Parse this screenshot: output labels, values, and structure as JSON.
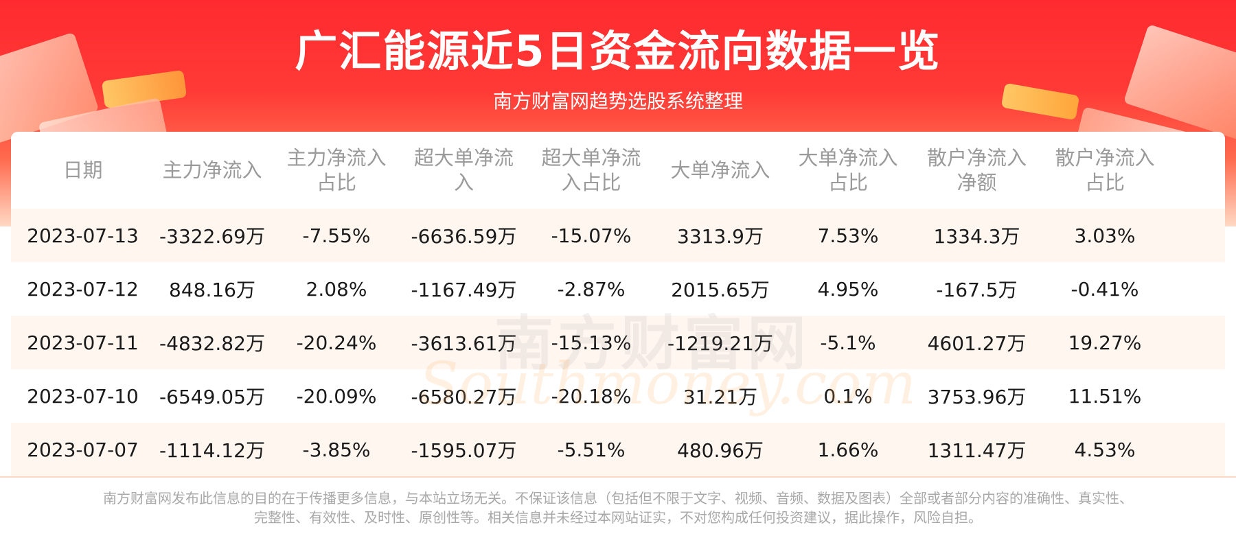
{
  "title": "广汇能源近5日资金流向数据一览",
  "subtitle": "南方财富网趋势选股系统整理",
  "table": {
    "headers": [
      [
        "日期"
      ],
      [
        "主力净流入"
      ],
      [
        "主力净流入",
        "占比"
      ],
      [
        "超大单净流",
        "入"
      ],
      [
        "超大单净流",
        "入占比"
      ],
      [
        "大单净流入"
      ],
      [
        "大单净流入",
        "占比"
      ],
      [
        "散户净流入",
        "净额"
      ],
      [
        "散户净流入",
        "占比"
      ]
    ],
    "rows": [
      [
        "2023-07-13",
        "-3322.69万",
        "-7.55%",
        "-6636.59万",
        "-15.07%",
        "3313.9万",
        "7.53%",
        "1334.3万",
        "3.03%"
      ],
      [
        "2023-07-12",
        "848.16万",
        "2.08%",
        "-1167.49万",
        "-2.87%",
        "2015.65万",
        "4.95%",
        "-167.5万",
        "-0.41%"
      ],
      [
        "2023-07-11",
        "-4832.82万",
        "-20.24%",
        "-3613.61万",
        "-15.13%",
        "-1219.21万",
        "-5.1%",
        "4601.27万",
        "19.27%"
      ],
      [
        "2023-07-10",
        "-6549.05万",
        "-20.09%",
        "-6580.27万",
        "-20.18%",
        "31.21万",
        "0.1%",
        "3753.96万",
        "11.51%"
      ],
      [
        "2023-07-07",
        "-1114.12万",
        "-3.85%",
        "-1595.07万",
        "-5.51%",
        "480.96万",
        "1.66%",
        "1311.47万",
        "4.53%"
      ]
    ]
  },
  "watermark": {
    "cn": "南方财富网",
    "en": "Southmoney.com"
  },
  "disclaimer": {
    "line1": "南方财富网发布此信息的目的在于传播更多信息，与本站立场无关。不保证该信息（包括但不限于文字、视频、音频、数据及图表）全部或者部分内容的准确性、真实性、",
    "line2": "完整性、有效性、及时性、原创性等。相关信息并未经过本网站证实，不对您构成任何投资建议，据此操作，风险自担。"
  },
  "colors": {
    "banner": "#ff2a2f",
    "stripe": "#fff6f0",
    "header_text": "#9a9a9a",
    "cell_text": "#1a1a1a"
  }
}
